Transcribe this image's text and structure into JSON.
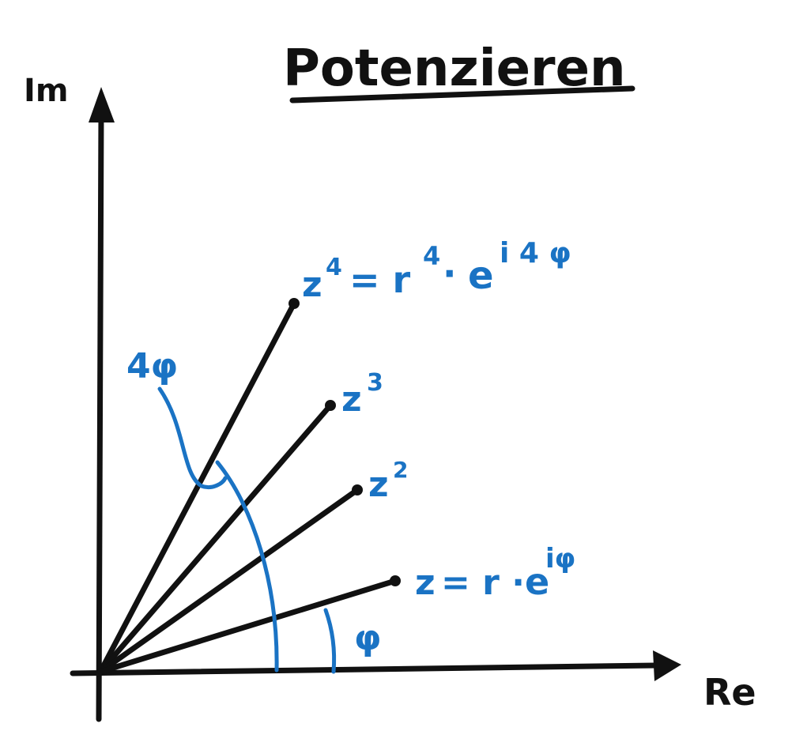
{
  "title": "Potenzieren",
  "axes": {
    "y_label": "Im",
    "x_label": "Re"
  },
  "labels": {
    "z4_base": "z",
    "z4_exp": "4",
    "z4_eq": "= r",
    "z4_r_exp": "4",
    "z4_dot": "·",
    "z4_e": "e",
    "z4_e_exp": "i 4 φ",
    "z3_base": "z",
    "z3_exp": "3",
    "z2_base": "z",
    "z2_exp": "2",
    "z1_base": "z",
    "z1_eq": "= r ·",
    "z1_e": "e",
    "z1_e_exp": "iφ",
    "angle_4phi": "4φ",
    "angle_phi": "φ"
  },
  "colors": {
    "ink": "#111111",
    "accent": "#1a73c4"
  }
}
